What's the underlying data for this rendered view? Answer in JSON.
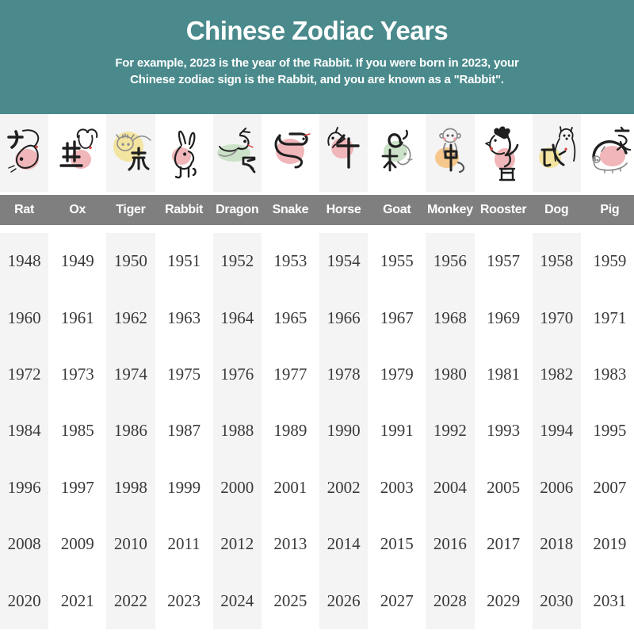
{
  "header": {
    "bg": "#4a8a8c",
    "text_color": "#ffffff",
    "title": "Chinese Zodiac Years",
    "subtitle_line1": "For example, 2023 is the year of the Rabbit. If you were born in 2023, your",
    "subtitle_line2": "Chinese zodiac sign is the Rabbit, and you are known as a \"Rabbit\"."
  },
  "table": {
    "names_bar_bg": "#7f7f7f",
    "stripe_color": "#f4f4f4",
    "year_text_color": "#3a3a3a",
    "ink_color": "#1f1f1f",
    "accent_red": "#d64545",
    "columns": [
      {
        "label": "Rat",
        "icon": "rat-icon",
        "blob_color": "#f1b6ba",
        "years": [
          1948,
          1960,
          1972,
          1984,
          1996,
          2008,
          2020
        ]
      },
      {
        "label": "Ox",
        "icon": "ox-icon",
        "blob_color": "#f1b6ba",
        "years": [
          1949,
          1961,
          1973,
          1985,
          1997,
          2009,
          2021
        ]
      },
      {
        "label": "Tiger",
        "icon": "tiger-icon",
        "blob_color": "#f3e4a0",
        "years": [
          1950,
          1962,
          1974,
          1986,
          1998,
          2010,
          2022
        ]
      },
      {
        "label": "Rabbit",
        "icon": "rabbit-icon",
        "blob_color": "#f1b6ba",
        "years": [
          1951,
          1963,
          1975,
          1987,
          1999,
          2011,
          2023
        ]
      },
      {
        "label": "Dragon",
        "icon": "dragon-icon",
        "blob_color": "#cbe2c8",
        "years": [
          1952,
          1964,
          1976,
          1988,
          2000,
          2012,
          2024
        ]
      },
      {
        "label": "Snake",
        "icon": "snake-icon",
        "blob_color": "#f1b6ba",
        "years": [
          1953,
          1965,
          1977,
          1989,
          2001,
          2013,
          2025
        ]
      },
      {
        "label": "Horse",
        "icon": "horse-icon",
        "blob_color": "#f1b6ba",
        "years": [
          1954,
          1966,
          1978,
          1990,
          2002,
          2014,
          2026
        ]
      },
      {
        "label": "Goat",
        "icon": "goat-icon",
        "blob_color": "#cbe2c8",
        "years": [
          1955,
          1967,
          1979,
          1991,
          2003,
          2015,
          2027
        ]
      },
      {
        "label": "Monkey",
        "icon": "monkey-icon",
        "blob_color": "#f5c78c",
        "years": [
          1956,
          1968,
          1980,
          1992,
          2004,
          2016,
          2028
        ]
      },
      {
        "label": "Rooster",
        "icon": "rooster-icon",
        "blob_color": "#f1b6ba",
        "years": [
          1957,
          1969,
          1981,
          1993,
          2005,
          2017,
          2029
        ]
      },
      {
        "label": "Dog",
        "icon": "dog-icon",
        "blob_color": "#f3e4a0",
        "years": [
          1958,
          1970,
          1982,
          1994,
          2006,
          2018,
          2030
        ]
      },
      {
        "label": "Pig",
        "icon": "pig-icon",
        "blob_color": "#f1b6ba",
        "years": [
          1959,
          1971,
          1983,
          1995,
          2007,
          2019,
          2031
        ]
      }
    ]
  },
  "chart_data": {
    "type": "table",
    "title": "Chinese Zodiac Years",
    "subtitle": "For example, 2023 is the year of the Rabbit. If you were born in 2023, your Chinese zodiac sign is the Rabbit, and you are known as a \"Rabbit\".",
    "columns": [
      "Rat",
      "Ox",
      "Tiger",
      "Rabbit",
      "Dragon",
      "Snake",
      "Horse",
      "Goat",
      "Monkey",
      "Rooster",
      "Dog",
      "Pig"
    ],
    "rows": [
      [
        1948,
        1949,
        1950,
        1951,
        1952,
        1953,
        1954,
        1955,
        1956,
        1957,
        1958,
        1959
      ],
      [
        1960,
        1961,
        1962,
        1963,
        1964,
        1965,
        1966,
        1967,
        1968,
        1969,
        1970,
        1971
      ],
      [
        1972,
        1973,
        1974,
        1975,
        1976,
        1977,
        1978,
        1979,
        1980,
        1981,
        1982,
        1983
      ],
      [
        1984,
        1985,
        1986,
        1987,
        1988,
        1989,
        1990,
        1991,
        1992,
        1993,
        1994,
        1995
      ],
      [
        1996,
        1997,
        1998,
        1999,
        2000,
        2001,
        2002,
        2003,
        2004,
        2005,
        2006,
        2007
      ],
      [
        2008,
        2009,
        2010,
        2011,
        2012,
        2013,
        2014,
        2015,
        2016,
        2017,
        2018,
        2019
      ],
      [
        2020,
        2021,
        2022,
        2023,
        2024,
        2025,
        2026,
        2027,
        2028,
        2029,
        2030,
        2031
      ]
    ]
  }
}
